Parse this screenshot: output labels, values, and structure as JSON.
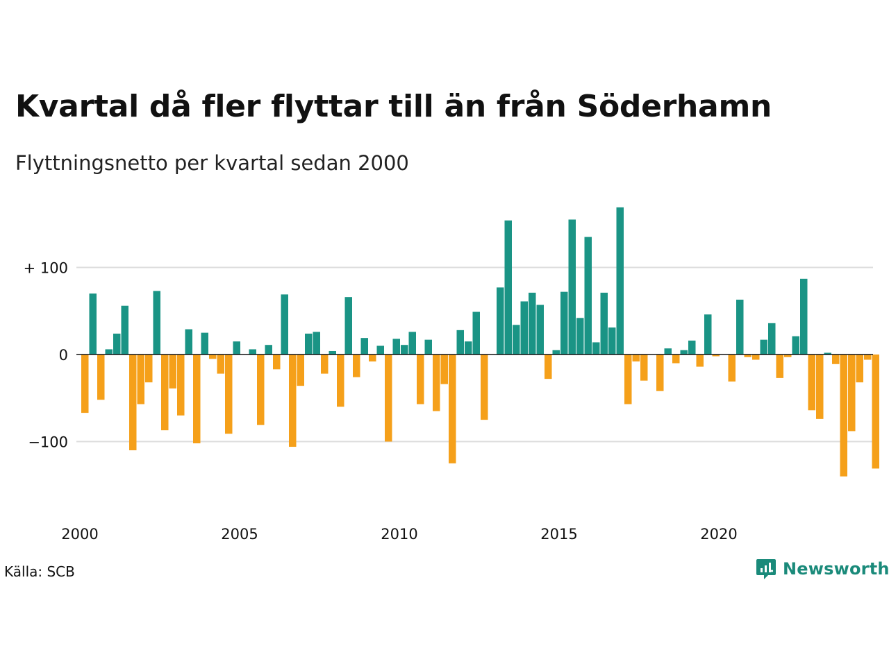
{
  "header": {
    "title": "Kvartal då fler flyttar till än från Söderhamn",
    "subtitle": "Flyttningsnetto per kvartal sedan 2000"
  },
  "footer": {
    "source": "Källa: SCB",
    "brand": "Newsworthy"
  },
  "colors": {
    "positive": "#1a9485",
    "negative": "#f5a01a",
    "grid": "#dddddd",
    "zero_line": "#111111",
    "brand": "#1a8a7a"
  },
  "chart_data": {
    "type": "bar",
    "title": "Kvartal då fler flyttar till än från Söderhamn",
    "subtitle": "Flyttningsnetto per kvartal sedan 2000",
    "ylim": [
      -175,
      175
    ],
    "y_ticks": [
      {
        "value": 100,
        "label": "+ 100"
      },
      {
        "value": 0,
        "label": "0"
      },
      {
        "value": -100,
        "label": "−100"
      }
    ],
    "x_ticks": [
      {
        "year": 2000,
        "label": "2000"
      },
      {
        "year": 2005,
        "label": "2005"
      },
      {
        "year": 2010,
        "label": "2010"
      },
      {
        "year": 2015,
        "label": "2015"
      },
      {
        "year": 2020,
        "label": "2020"
      }
    ],
    "grid": true,
    "start": "2000 Q1",
    "categories": [
      "2000 Q1",
      "2000 Q2",
      "2000 Q3",
      "2000 Q4",
      "2001 Q1",
      "2001 Q2",
      "2001 Q3",
      "2001 Q4",
      "2002 Q1",
      "2002 Q2",
      "2002 Q3",
      "2002 Q4",
      "2003 Q1",
      "2003 Q2",
      "2003 Q3",
      "2003 Q4",
      "2004 Q1",
      "2004 Q2",
      "2004 Q3",
      "2004 Q4",
      "2005 Q1",
      "2005 Q2",
      "2005 Q3",
      "2005 Q4",
      "2006 Q1",
      "2006 Q2",
      "2006 Q3",
      "2006 Q4",
      "2007 Q1",
      "2007 Q2",
      "2007 Q3",
      "2007 Q4",
      "2008 Q1",
      "2008 Q2",
      "2008 Q3",
      "2008 Q4",
      "2009 Q1",
      "2009 Q2",
      "2009 Q3",
      "2009 Q4",
      "2010 Q1",
      "2010 Q2",
      "2010 Q3",
      "2010 Q4",
      "2011 Q1",
      "2011 Q2",
      "2011 Q3",
      "2011 Q4",
      "2012 Q1",
      "2012 Q2",
      "2012 Q3",
      "2012 Q4",
      "2013 Q1",
      "2013 Q2",
      "2013 Q3",
      "2013 Q4",
      "2014 Q1",
      "2014 Q2",
      "2014 Q3",
      "2014 Q4",
      "2015 Q1",
      "2015 Q2",
      "2015 Q3",
      "2015 Q4",
      "2016 Q1",
      "2016 Q2",
      "2016 Q3",
      "2016 Q4",
      "2017 Q1",
      "2017 Q2",
      "2017 Q3",
      "2017 Q4",
      "2018 Q1",
      "2018 Q2",
      "2018 Q3",
      "2018 Q4",
      "2019 Q1",
      "2019 Q2",
      "2019 Q3",
      "2019 Q4",
      "2020 Q1",
      "2020 Q2",
      "2020 Q3",
      "2020 Q4",
      "2021 Q1",
      "2021 Q2",
      "2021 Q3",
      "2021 Q4",
      "2022 Q1",
      "2022 Q2",
      "2022 Q3",
      "2022 Q4",
      "2023 Q1",
      "2023 Q2",
      "2023 Q3",
      "2023 Q4",
      "2024 Q1",
      "2024 Q2",
      "2024 Q3",
      "2024 Q4"
    ],
    "values": [
      -67,
      70,
      -52,
      6,
      24,
      56,
      -110,
      -57,
      -32,
      73,
      -87,
      -39,
      -70,
      29,
      -102,
      25,
      -5,
      -22,
      -91,
      15,
      0,
      6,
      -81,
      11,
      -17,
      69,
      -106,
      -36,
      24,
      26,
      -22,
      4,
      -60,
      66,
      -26,
      19,
      -8,
      10,
      -100,
      18,
      11,
      26,
      -57,
      17,
      -65,
      -34,
      -125,
      28,
      15,
      49,
      -75,
      0,
      77,
      154,
      34,
      61,
      71,
      57,
      -28,
      5,
      72,
      155,
      42,
      135,
      14,
      71,
      31,
      169,
      -57,
      -8,
      -30,
      0,
      -42,
      7,
      -10,
      5,
      16,
      -14,
      46,
      -2,
      0,
      -31,
      63,
      -3,
      -6,
      17,
      36,
      -27,
      -3,
      21,
      87,
      -64,
      -74,
      2,
      -11,
      -140,
      -88,
      -32,
      -6,
      -131
    ]
  }
}
